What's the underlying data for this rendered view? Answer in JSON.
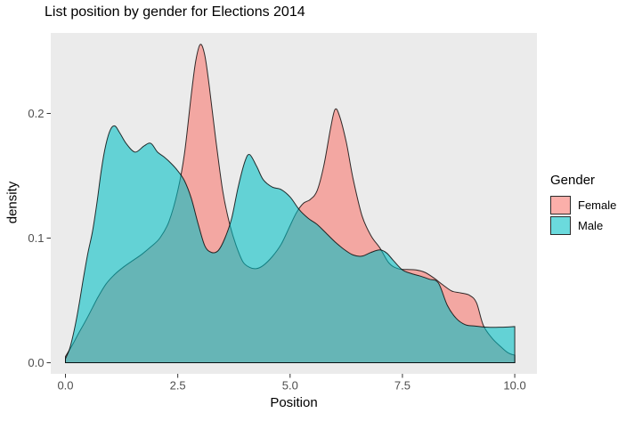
{
  "chart_data": {
    "type": "area",
    "subtype": "density",
    "title": "List position by gender for Elections 2014",
    "xlabel": "Position",
    "ylabel": "density",
    "xlim": [
      0,
      10
    ],
    "ylim": [
      0,
      0.26
    ],
    "grid": false,
    "panel_color": "#EBEBEB",
    "outline_color": "#000000",
    "fill_opacity": 0.58,
    "tick_label_color": "#4d4d4d",
    "tick_mark_color": "#333333",
    "x_ticks": [
      "0.0",
      "2.5",
      "5.0",
      "7.5",
      "10.0"
    ],
    "x_tick_values": [
      0,
      2.5,
      5,
      7.5,
      10
    ],
    "y_ticks": [
      "0.0",
      "0.1",
      "0.2"
    ],
    "y_tick_values": [
      0,
      0.1,
      0.2
    ],
    "legend": {
      "title": "Gender",
      "position": "right",
      "entries": [
        {
          "label": "Female",
          "color": "#F8766D"
        },
        {
          "label": "Male",
          "color": "#00BFC4"
        }
      ]
    },
    "series": [
      {
        "name": "Female",
        "color": "#F8766D",
        "x": [
          0,
          0.15,
          0.3,
          0.5,
          0.7,
          0.9,
          1.1,
          1.3,
          1.5,
          1.7,
          1.9,
          2.1,
          2.3,
          2.5,
          2.65,
          2.8,
          2.9,
          3.0,
          3.1,
          3.2,
          3.35,
          3.5,
          3.65,
          3.8,
          3.95,
          4.1,
          4.25,
          4.4,
          4.6,
          4.8,
          5.0,
          5.15,
          5.3,
          5.45,
          5.6,
          5.75,
          5.9,
          6.0,
          6.1,
          6.25,
          6.4,
          6.6,
          6.8,
          7.0,
          7.2,
          7.4,
          7.6,
          7.8,
          8.0,
          8.2,
          8.4,
          8.6,
          8.8,
          9.0,
          9.15,
          9.3,
          9.5,
          9.7,
          9.85,
          10.0
        ],
        "y": [
          0.005,
          0.014,
          0.024,
          0.037,
          0.051,
          0.063,
          0.071,
          0.077,
          0.082,
          0.087,
          0.093,
          0.1,
          0.113,
          0.138,
          0.168,
          0.215,
          0.242,
          0.2554,
          0.247,
          0.222,
          0.178,
          0.138,
          0.112,
          0.094,
          0.081,
          0.0765,
          0.0755,
          0.078,
          0.085,
          0.095,
          0.11,
          0.121,
          0.128,
          0.131,
          0.138,
          0.158,
          0.188,
          0.2032,
          0.198,
          0.177,
          0.148,
          0.118,
          0.102,
          0.092,
          0.08,
          0.0755,
          0.0748,
          0.0745,
          0.0725,
          0.068,
          0.0625,
          0.0575,
          0.056,
          0.054,
          0.048,
          0.03,
          0.0195,
          0.0125,
          0.008,
          0.006
        ]
      },
      {
        "name": "Male",
        "color": "#00BFC4",
        "x": [
          0,
          0.1,
          0.2,
          0.3,
          0.4,
          0.5,
          0.6,
          0.7,
          0.8,
          0.9,
          1.0,
          1.1,
          1.2,
          1.35,
          1.55,
          1.75,
          1.9,
          2.05,
          2.2,
          2.35,
          2.5,
          2.65,
          2.8,
          2.95,
          3.1,
          3.25,
          3.4,
          3.55,
          3.7,
          3.85,
          4.0,
          4.1,
          4.25,
          4.4,
          4.6,
          4.8,
          5.0,
          5.2,
          5.4,
          5.6,
          5.8,
          6.0,
          6.2,
          6.4,
          6.6,
          6.8,
          7.0,
          7.15,
          7.3,
          7.5,
          7.7,
          7.9,
          8.1,
          8.3,
          8.5,
          8.7,
          8.9,
          9.1,
          9.4,
          9.7,
          10.0
        ],
        "y": [
          0.003,
          0.012,
          0.027,
          0.046,
          0.068,
          0.088,
          0.105,
          0.128,
          0.155,
          0.175,
          0.187,
          0.19,
          0.185,
          0.176,
          0.169,
          0.174,
          0.176,
          0.169,
          0.165,
          0.16,
          0.154,
          0.146,
          0.132,
          0.112,
          0.094,
          0.0885,
          0.09,
          0.1,
          0.116,
          0.142,
          0.162,
          0.167,
          0.158,
          0.147,
          0.141,
          0.139,
          0.133,
          0.123,
          0.116,
          0.111,
          0.104,
          0.097,
          0.091,
          0.0865,
          0.0855,
          0.0885,
          0.0905,
          0.088,
          0.082,
          0.0745,
          0.0715,
          0.0695,
          0.067,
          0.064,
          0.046,
          0.0355,
          0.0305,
          0.0295,
          0.0285,
          0.0285,
          0.029
        ]
      }
    ]
  }
}
